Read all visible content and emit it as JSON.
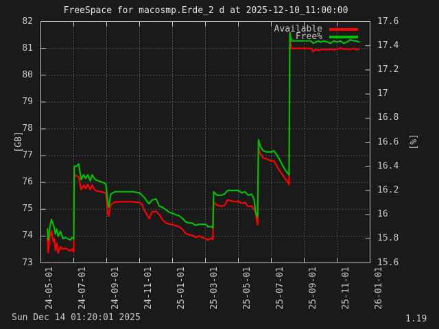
{
  "title": "FreeSpace for macosmp.Erde_2 d at 2025-12-10_11:00:00",
  "footer": {
    "timestamp": "Sun Dec 14 01:20:01 2025",
    "version": "1.19"
  },
  "colors": {
    "background": "#1a1a1a",
    "foreground": "#c8c8c8",
    "grid": "#8a8a8a",
    "available": "#ff0000",
    "free_pct": "#00c000"
  },
  "chart_data": {
    "type": "line",
    "title": "FreeSpace for macosmp.Erde_2 d at 2025-12-10_11:00:00",
    "grid": true,
    "x_unit": "fractional months since 2024-05-01 (ticks every 2 months)",
    "x_axis": {
      "range_months": [
        0,
        20
      ],
      "ticks": [
        {
          "months": 0,
          "label": "24-05-01"
        },
        {
          "months": 2,
          "label": "24-07-01"
        },
        {
          "months": 4,
          "label": "24-09-01"
        },
        {
          "months": 6,
          "label": "24-11-01"
        },
        {
          "months": 8,
          "label": "25-01-01"
        },
        {
          "months": 10,
          "label": "25-03-01"
        },
        {
          "months": 12,
          "label": "25-05-01"
        },
        {
          "months": 14,
          "label": "25-07-01"
        },
        {
          "months": 16,
          "label": "25-09-01"
        },
        {
          "months": 18,
          "label": "25-11-01"
        },
        {
          "months": 20,
          "label": "26-01-01"
        }
      ]
    },
    "y_axis_left": {
      "label": "[GB]",
      "range": [
        73,
        82
      ],
      "ticks": [
        {
          "value": 73,
          "label": "73"
        },
        {
          "value": 74,
          "label": "74"
        },
        {
          "value": 75,
          "label": "75"
        },
        {
          "value": 76,
          "label": "76"
        },
        {
          "value": 77,
          "label": "77"
        },
        {
          "value": 78,
          "label": "78"
        },
        {
          "value": 79,
          "label": "79"
        },
        {
          "value": 80,
          "label": "80"
        },
        {
          "value": 81,
          "label": "81"
        },
        {
          "value": 82,
          "label": "82"
        }
      ]
    },
    "y_axis_right": {
      "label": "[%]",
      "range": [
        15.6,
        17.6
      ],
      "ticks": [
        {
          "value": 15.6,
          "label": "15.6"
        },
        {
          "value": 15.8,
          "label": "15.8"
        },
        {
          "value": 16,
          "label": "16"
        },
        {
          "value": 16.2,
          "label": "16.2"
        },
        {
          "value": 16.4,
          "label": "16.4"
        },
        {
          "value": 16.6,
          "label": "16.6"
        },
        {
          "value": 16.8,
          "label": "16.8"
        },
        {
          "value": 17,
          "label": "17"
        },
        {
          "value": 17.2,
          "label": "17.2"
        },
        {
          "value": 17.4,
          "label": "17.4"
        },
        {
          "value": 17.6,
          "label": "17.6"
        }
      ]
    },
    "legend": {
      "position": "top-right-inside",
      "entries": [
        {
          "name": "Available",
          "color": "#ff0000",
          "axis": "left"
        },
        {
          "name": "Free%",
          "color": "#00c000",
          "axis": "right"
        }
      ]
    },
    "series": [
      {
        "name": "Available",
        "unit": "GB",
        "axis": "left",
        "color": "#ff0000",
        "points": [
          [
            0.4,
            73.95
          ],
          [
            0.45,
            73.38
          ],
          [
            0.55,
            74.0
          ],
          [
            0.65,
            74.19
          ],
          [
            0.75,
            73.8
          ],
          [
            0.82,
            73.9
          ],
          [
            0.88,
            73.46
          ],
          [
            0.97,
            73.74
          ],
          [
            1.05,
            73.36
          ],
          [
            1.2,
            73.6
          ],
          [
            1.35,
            73.5
          ],
          [
            1.5,
            73.55
          ],
          [
            1.65,
            73.48
          ],
          [
            1.8,
            73.45
          ],
          [
            1.9,
            73.52
          ],
          [
            2.0,
            73.4
          ],
          [
            2.03,
            76.24
          ],
          [
            2.15,
            76.26
          ],
          [
            2.3,
            76.2
          ],
          [
            2.45,
            75.73
          ],
          [
            2.6,
            75.9
          ],
          [
            2.72,
            75.77
          ],
          [
            2.85,
            75.93
          ],
          [
            3.0,
            75.73
          ],
          [
            3.12,
            75.9
          ],
          [
            3.3,
            75.7
          ],
          [
            3.5,
            75.67
          ],
          [
            3.7,
            75.65
          ],
          [
            3.9,
            75.62
          ],
          [
            3.97,
            75.55
          ],
          [
            4.05,
            74.87
          ],
          [
            4.12,
            74.74
          ],
          [
            4.25,
            75.17
          ],
          [
            4.5,
            75.27
          ],
          [
            5.0,
            75.28
          ],
          [
            5.6,
            75.28
          ],
          [
            6.0,
            75.25
          ],
          [
            6.15,
            75.17
          ],
          [
            6.3,
            74.95
          ],
          [
            6.45,
            74.8
          ],
          [
            6.58,
            74.65
          ],
          [
            6.75,
            74.9
          ],
          [
            7.0,
            74.92
          ],
          [
            7.2,
            74.8
          ],
          [
            7.4,
            74.6
          ],
          [
            7.6,
            74.48
          ],
          [
            7.8,
            74.45
          ],
          [
            8.0,
            74.43
          ],
          [
            8.2,
            74.38
          ],
          [
            8.4,
            74.35
          ],
          [
            8.6,
            74.25
          ],
          [
            8.8,
            74.1
          ],
          [
            9.0,
            74.05
          ],
          [
            9.2,
            74.03
          ],
          [
            9.4,
            73.95
          ],
          [
            9.6,
            74.0
          ],
          [
            9.8,
            73.95
          ],
          [
            10.0,
            73.9
          ],
          [
            10.15,
            73.85
          ],
          [
            10.35,
            73.92
          ],
          [
            10.45,
            73.88
          ],
          [
            10.5,
            75.26
          ],
          [
            10.7,
            75.15
          ],
          [
            10.95,
            75.12
          ],
          [
            11.15,
            75.13
          ],
          [
            11.35,
            75.35
          ],
          [
            11.6,
            75.3
          ],
          [
            11.85,
            75.28
          ],
          [
            12.0,
            75.3
          ],
          [
            12.2,
            75.22
          ],
          [
            12.4,
            75.25
          ],
          [
            12.6,
            75.1
          ],
          [
            12.8,
            75.13
          ],
          [
            12.95,
            75.0
          ],
          [
            13.05,
            74.88
          ],
          [
            13.12,
            74.56
          ],
          [
            13.17,
            74.42
          ],
          [
            13.22,
            77.28
          ],
          [
            13.35,
            77.05
          ],
          [
            13.5,
            76.92
          ],
          [
            13.7,
            76.88
          ],
          [
            13.9,
            76.82
          ],
          [
            14.05,
            76.8
          ],
          [
            14.15,
            76.81
          ],
          [
            14.3,
            76.65
          ],
          [
            14.45,
            76.48
          ],
          [
            14.6,
            76.36
          ],
          [
            14.8,
            76.18
          ],
          [
            14.95,
            76.05
          ],
          [
            15.08,
            75.92
          ],
          [
            15.13,
            81.35
          ],
          [
            15.22,
            81.0
          ],
          [
            15.6,
            81.0
          ],
          [
            16.0,
            81.0
          ],
          [
            16.4,
            81.0
          ],
          [
            16.55,
            80.88
          ],
          [
            16.7,
            80.97
          ],
          [
            16.85,
            80.92
          ],
          [
            17.0,
            80.95
          ],
          [
            17.2,
            80.97
          ],
          [
            17.4,
            80.95
          ],
          [
            17.6,
            80.97
          ],
          [
            17.8,
            80.95
          ],
          [
            18.0,
            80.97
          ],
          [
            18.2,
            81.02
          ],
          [
            18.4,
            80.97
          ],
          [
            18.6,
            80.98
          ],
          [
            18.8,
            80.96
          ],
          [
            19.0,
            81.0
          ],
          [
            19.15,
            80.95
          ],
          [
            19.33,
            80.97
          ]
        ]
      },
      {
        "name": "Free%",
        "unit": "%",
        "axis": "right",
        "color": "#00c000",
        "points": [
          [
            0.4,
            15.88
          ],
          [
            0.45,
            15.79
          ],
          [
            0.55,
            15.9
          ],
          [
            0.65,
            15.96
          ],
          [
            0.75,
            15.92
          ],
          [
            0.82,
            15.89
          ],
          [
            0.88,
            15.84
          ],
          [
            0.97,
            15.88
          ],
          [
            1.05,
            15.82
          ],
          [
            1.2,
            15.86
          ],
          [
            1.35,
            15.8
          ],
          [
            1.5,
            15.81
          ],
          [
            1.65,
            15.8
          ],
          [
            1.8,
            15.79
          ],
          [
            1.9,
            15.81
          ],
          [
            2.0,
            15.8
          ],
          [
            2.03,
            16.4
          ],
          [
            2.15,
            16.4
          ],
          [
            2.3,
            16.42
          ],
          [
            2.45,
            16.29
          ],
          [
            2.6,
            16.33
          ],
          [
            2.72,
            16.3
          ],
          [
            2.85,
            16.33
          ],
          [
            3.0,
            16.28
          ],
          [
            3.12,
            16.33
          ],
          [
            3.3,
            16.29
          ],
          [
            3.5,
            16.28
          ],
          [
            3.7,
            16.27
          ],
          [
            3.9,
            16.26
          ],
          [
            3.97,
            16.24
          ],
          [
            4.05,
            16.11
          ],
          [
            4.12,
            16.06
          ],
          [
            4.25,
            16.17
          ],
          [
            4.5,
            16.19
          ],
          [
            5.0,
            16.19
          ],
          [
            5.6,
            16.19
          ],
          [
            6.0,
            16.18
          ],
          [
            6.15,
            16.16
          ],
          [
            6.3,
            16.14
          ],
          [
            6.45,
            16.11
          ],
          [
            6.58,
            16.09
          ],
          [
            6.75,
            16.12
          ],
          [
            7.0,
            16.13
          ],
          [
            7.2,
            16.07
          ],
          [
            7.4,
            16.06
          ],
          [
            7.6,
            16.04
          ],
          [
            7.8,
            16.02
          ],
          [
            8.0,
            16.01
          ],
          [
            8.2,
            16.0
          ],
          [
            8.4,
            15.99
          ],
          [
            8.6,
            15.97
          ],
          [
            8.8,
            15.94
          ],
          [
            9.0,
            15.93
          ],
          [
            9.2,
            15.93
          ],
          [
            9.4,
            15.91
          ],
          [
            9.6,
            15.92
          ],
          [
            9.8,
            15.92
          ],
          [
            10.0,
            15.92
          ],
          [
            10.15,
            15.9
          ],
          [
            10.35,
            15.9
          ],
          [
            10.45,
            15.89
          ],
          [
            10.5,
            16.19
          ],
          [
            10.7,
            16.16
          ],
          [
            10.95,
            16.16
          ],
          [
            11.15,
            16.17
          ],
          [
            11.35,
            16.2
          ],
          [
            11.6,
            16.2
          ],
          [
            11.85,
            16.2
          ],
          [
            12.0,
            16.2
          ],
          [
            12.2,
            16.18
          ],
          [
            12.4,
            16.19
          ],
          [
            12.6,
            16.16
          ],
          [
            12.8,
            16.17
          ],
          [
            12.95,
            16.13
          ],
          [
            13.05,
            16.02
          ],
          [
            13.12,
            15.99
          ],
          [
            13.17,
            15.98
          ],
          [
            13.22,
            16.62
          ],
          [
            13.35,
            16.56
          ],
          [
            13.5,
            16.53
          ],
          [
            13.7,
            16.52
          ],
          [
            13.9,
            16.52
          ],
          [
            14.05,
            16.52
          ],
          [
            14.15,
            16.53
          ],
          [
            14.3,
            16.5
          ],
          [
            14.45,
            16.47
          ],
          [
            14.6,
            16.43
          ],
          [
            14.8,
            16.38
          ],
          [
            14.95,
            16.35
          ],
          [
            15.08,
            16.33
          ],
          [
            15.13,
            17.51
          ],
          [
            15.22,
            17.44
          ],
          [
            15.6,
            17.44
          ],
          [
            16.0,
            17.44
          ],
          [
            16.4,
            17.44
          ],
          [
            16.55,
            17.42
          ],
          [
            16.7,
            17.43
          ],
          [
            16.85,
            17.44
          ],
          [
            17.0,
            17.43
          ],
          [
            17.2,
            17.44
          ],
          [
            17.4,
            17.43
          ],
          [
            17.6,
            17.42
          ],
          [
            17.8,
            17.44
          ],
          [
            18.0,
            17.43
          ],
          [
            18.2,
            17.44
          ],
          [
            18.4,
            17.42
          ],
          [
            18.6,
            17.43
          ],
          [
            18.8,
            17.45
          ],
          [
            19.0,
            17.44
          ],
          [
            19.15,
            17.44
          ],
          [
            19.33,
            17.43
          ]
        ]
      }
    ]
  }
}
